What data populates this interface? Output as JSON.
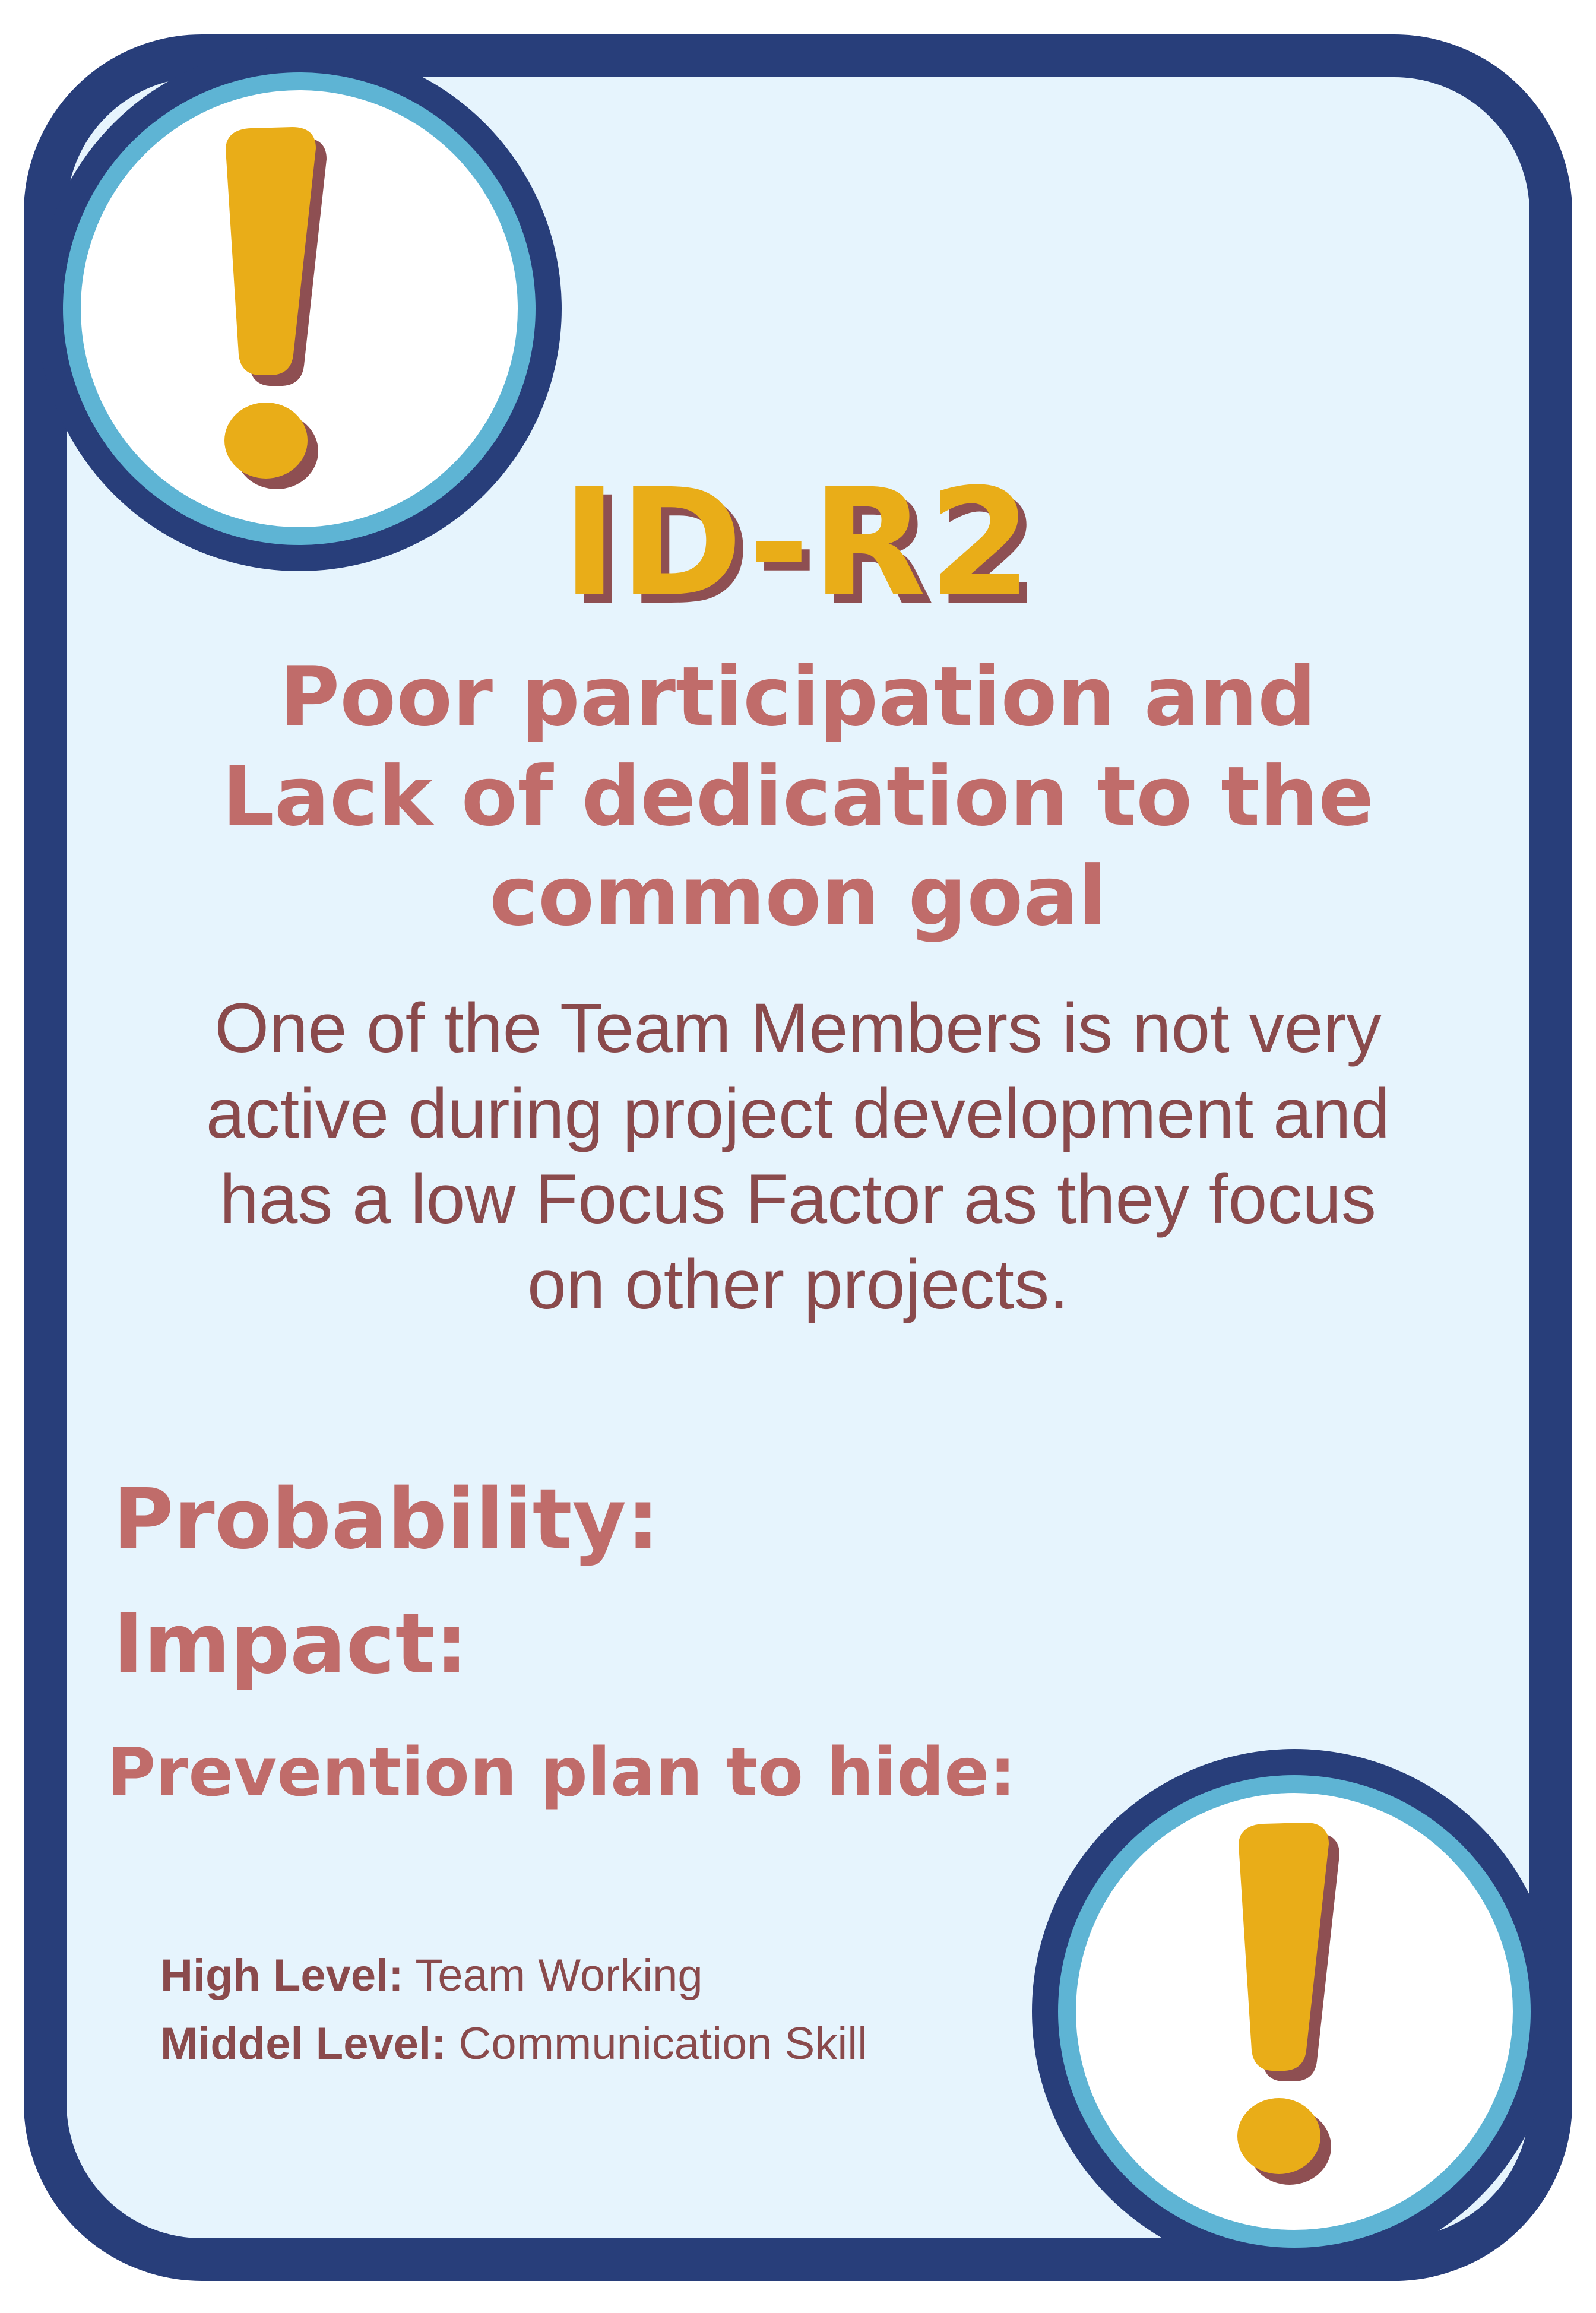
{
  "card": {
    "code": "ID-R2",
    "title": "Poor participation and Lack of dedication to the common goal",
    "description": "One of the Team Members is not very active during project development and has a low Focus Factor as they focus on other projects.",
    "fields": {
      "probability_label": "Probability:",
      "impact_label": "Impact:",
      "prevention_label": "Prevention plan to hide:"
    },
    "levels": {
      "high_label": "High Level:",
      "high_value": "Team Working",
      "middle_label": "Middel Level:",
      "middle_value": "Communication Skill"
    },
    "icons": {
      "top": "exclamation-icon",
      "bottom": "exclamation-icon"
    },
    "colors": {
      "frame": "#283e7a",
      "ring": "#5eb4d4",
      "background": "#e6f4fd",
      "accent_yellow": "#e9ad18",
      "shadow": "#8e4f52",
      "heading_text": "#c06c6a",
      "body_text": "#8a4a4c"
    }
  }
}
